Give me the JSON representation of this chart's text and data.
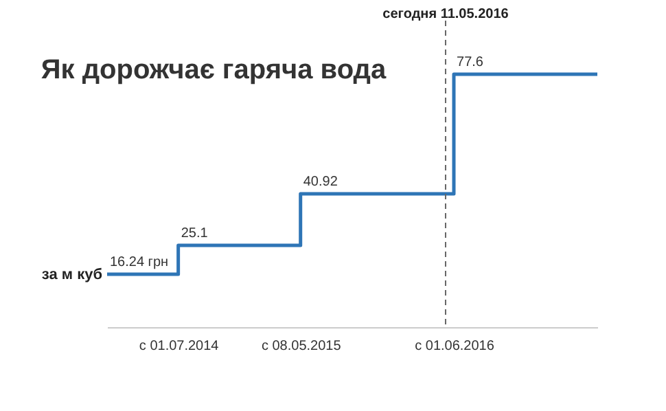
{
  "chart_data": {
    "type": "step",
    "title": "Як дорожчає гаряча вода",
    "ylabel": "за м куб",
    "x": [
      "2014-01-01",
      "2014-07-01",
      "2015-05-08",
      "2016-06-01",
      "2017-06-01"
    ],
    "series": [
      {
        "color": "#2e75b6",
        "values": [
          16.24,
          25.1,
          40.92,
          77.6,
          77.6
        ],
        "value_labels": [
          "16.24 грн",
          "25.1",
          "40.92",
          "77.6",
          null
        ]
      }
    ],
    "xlim": [
      "2014-01-01",
      "2017-06-01"
    ],
    "xticks": [
      {
        "value": "2014-07-01",
        "label": "с 01.07.2014"
      },
      {
        "value": "2015-05-08",
        "label": "с 08.05.2015"
      },
      {
        "value": "2016-06-01",
        "label": "с 01.06.2016"
      }
    ],
    "grid": false,
    "marker": "none",
    "line_style": "solid",
    "ref_lines": [
      {
        "axis": "x",
        "value": "2016-05-11",
        "label": "сегодня 11.05.2016",
        "line_style": "dashed",
        "color": "#666666"
      }
    ]
  }
}
